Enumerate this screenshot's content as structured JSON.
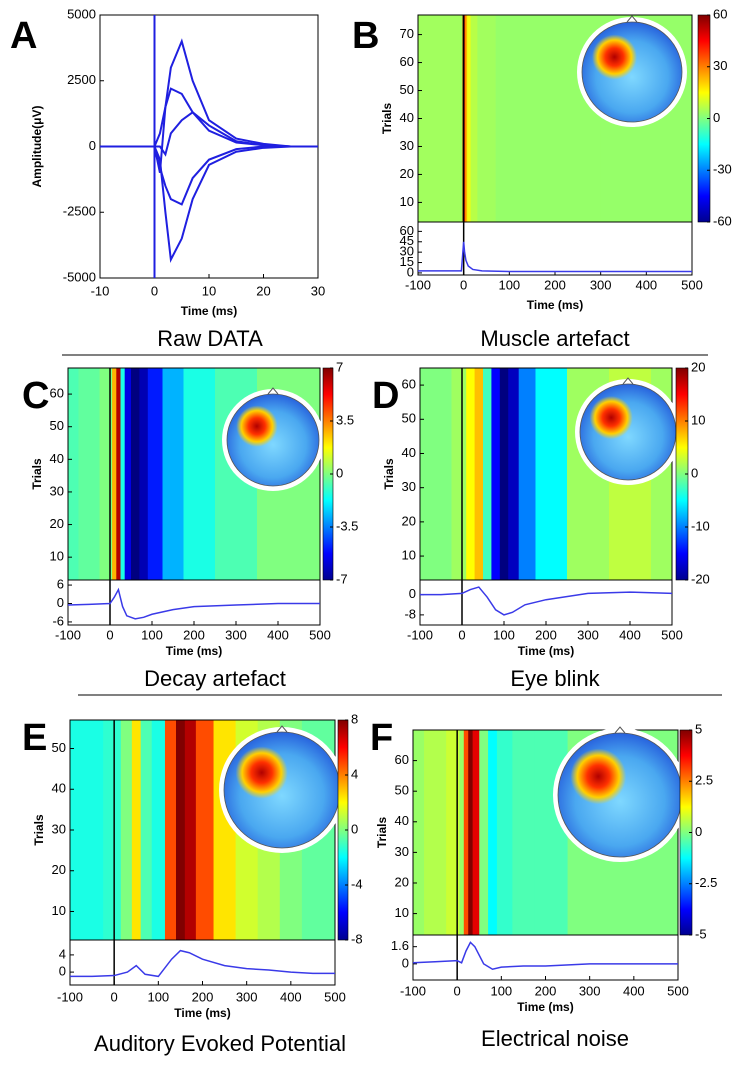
{
  "chart_data": [
    {
      "type": "line",
      "label": "A",
      "caption": "Raw DATA",
      "xlabel": "Time (ms)",
      "ylabel": "Amplitude(μV)",
      "xlim": [
        -10,
        30
      ],
      "xticks": [
        -10,
        0,
        10,
        20,
        30
      ],
      "ylim": [
        -5000,
        5000
      ],
      "yticks": [
        -5000,
        -2500,
        0,
        2500,
        5000
      ],
      "color": "#1f1fe0",
      "series": [
        {
          "x": [
            0,
            0
          ],
          "values": [
            -5000,
            5000
          ]
        },
        {
          "x": [
            -10,
            -1,
            0,
            1,
            2,
            3,
            5,
            7,
            10,
            15,
            20,
            25,
            30
          ],
          "values": [
            0,
            0,
            0,
            -1000,
            1500,
            3000,
            4000,
            2500,
            1000,
            300,
            100,
            0,
            0
          ]
        },
        {
          "x": [
            -10,
            -1,
            0,
            1,
            2,
            3,
            5,
            7,
            10,
            15,
            20,
            25,
            30
          ],
          "values": [
            0,
            0,
            0,
            -500,
            -2500,
            -4300,
            -3500,
            -2000,
            -700,
            -200,
            -50,
            0,
            0
          ]
        },
        {
          "x": [
            -10,
            -1,
            0,
            1,
            2,
            3,
            5,
            7,
            10,
            15,
            20,
            25,
            30
          ],
          "values": [
            0,
            0,
            0,
            500,
            1500,
            2200,
            2000,
            1300,
            600,
            150,
            50,
            0,
            0
          ]
        },
        {
          "x": [
            -10,
            -1,
            0,
            1,
            2,
            3,
            5,
            7,
            10,
            15,
            20,
            25,
            30
          ],
          "values": [
            0,
            0,
            0,
            -800,
            -1500,
            -2000,
            -2200,
            -1200,
            -500,
            -100,
            0,
            0,
            0
          ]
        },
        {
          "x": [
            -10,
            -1,
            0,
            1,
            2,
            3,
            5,
            7,
            10,
            15,
            20,
            25,
            30
          ],
          "values": [
            0,
            0,
            0,
            0,
            -300,
            500,
            1000,
            1300,
            800,
            200,
            50,
            0,
            0
          ]
        }
      ]
    },
    {
      "type": "heatmap",
      "label": "B",
      "caption": "Muscle artefact",
      "xlabel": "Time (ms)",
      "ylabel": "Trials",
      "xlim": [
        -100,
        500
      ],
      "xticks": [
        -100,
        0,
        100,
        200,
        300,
        400,
        500
      ],
      "ylim": [
        3,
        77
      ],
      "yticks": [
        10,
        20,
        30,
        40,
        50,
        60,
        70
      ],
      "clim": [
        -60,
        60
      ],
      "cticks": [
        60,
        30,
        0,
        -30,
        -60
      ],
      "erp": {
        "x": [
          -100,
          -10,
          -5,
          0,
          2,
          5,
          10,
          20,
          40,
          100,
          500
        ],
        "values": [
          3,
          3,
          3,
          45,
          30,
          18,
          10,
          5,
          3,
          2,
          2
        ],
        "ylim": [
          -3,
          62
        ],
        "yticks": [
          0,
          15,
          30,
          45,
          60
        ],
        "color": "#3a3ae8"
      }
    },
    {
      "type": "heatmap",
      "label": "C",
      "caption": "Decay artefact",
      "xlabel": "Time (ms)",
      "ylabel": "Trials",
      "xlim": [
        -100,
        500
      ],
      "xticks": [
        -100,
        0,
        100,
        200,
        300,
        400,
        500
      ],
      "ylim": [
        3,
        68
      ],
      "yticks": [
        10,
        20,
        30,
        40,
        50,
        60
      ],
      "clim": [
        -7,
        7
      ],
      "cticks": [
        7,
        3.5,
        0,
        -3.5,
        -7
      ],
      "erp": {
        "x": [
          -100,
          -50,
          0,
          10,
          20,
          30,
          40,
          60,
          80,
          100,
          150,
          200,
          300,
          400,
          500
        ],
        "values": [
          -0.5,
          -0.3,
          0,
          2,
          4.5,
          -1,
          -4,
          -5,
          -4.5,
          -3.5,
          -2,
          -1,
          -0.5,
          0,
          0
        ],
        "ylim": [
          -7,
          7
        ],
        "yticks": [
          6,
          0,
          -6
        ],
        "color": "#3a3ae8"
      }
    },
    {
      "type": "heatmap",
      "label": "D",
      "caption": "Eye blink",
      "xlabel": "Time (ms)",
      "ylabel": "Trials",
      "xlim": [
        -100,
        500
      ],
      "xticks": [
        -100,
        0,
        100,
        200,
        300,
        400,
        500
      ],
      "ylim": [
        3,
        65
      ],
      "yticks": [
        10,
        20,
        30,
        40,
        50,
        60
      ],
      "clim": [
        -20,
        20
      ],
      "cticks": [
        20,
        10,
        0,
        -10,
        -20
      ],
      "erp": {
        "x": [
          -100,
          -50,
          0,
          20,
          40,
          60,
          80,
          100,
          120,
          150,
          200,
          300,
          400,
          500
        ],
        "values": [
          0,
          0,
          0.5,
          2,
          3,
          -1,
          -6,
          -8,
          -7,
          -4,
          -2,
          0.5,
          1,
          0.5
        ],
        "ylim": [
          -12,
          5
        ],
        "yticks": [
          0,
          -8
        ],
        "color": "#3a3ae8"
      }
    },
    {
      "type": "heatmap",
      "label": "E",
      "caption": "Auditory Evoked Potential",
      "xlabel": "Time (ms)",
      "ylabel": "Trials",
      "xlim": [
        -100,
        500
      ],
      "xticks": [
        -100,
        0,
        100,
        200,
        300,
        400,
        500
      ],
      "ylim": [
        3,
        57
      ],
      "yticks": [
        10,
        20,
        30,
        40,
        50
      ],
      "clim": [
        -8,
        8
      ],
      "cticks": [
        8,
        4,
        0,
        -4,
        -8
      ],
      "erp": {
        "x": [
          -100,
          -50,
          0,
          30,
          50,
          70,
          100,
          130,
          150,
          170,
          200,
          250,
          300,
          350,
          400,
          450,
          500
        ],
        "values": [
          -1,
          -1,
          -0.8,
          0,
          1.5,
          -0.5,
          -1,
          3,
          5,
          4.5,
          3,
          1.5,
          0.8,
          0.5,
          0,
          -0.3,
          -0.3
        ],
        "ylim": [
          -3,
          7
        ],
        "yticks": [
          4,
          0
        ],
        "color": "#3a3ae8"
      }
    },
    {
      "type": "heatmap",
      "label": "F",
      "caption": "Electrical noise",
      "xlabel": "Time (ms)",
      "ylabel": "Trials",
      "xlim": [
        -100,
        500
      ],
      "xticks": [
        -100,
        0,
        100,
        200,
        300,
        400,
        500
      ],
      "ylim": [
        3,
        70
      ],
      "yticks": [
        10,
        20,
        30,
        40,
        50,
        60
      ],
      "clim": [
        -5,
        5
      ],
      "cticks": [
        5,
        2.5,
        0,
        -2.5,
        -5
      ],
      "erp": {
        "x": [
          -100,
          -50,
          0,
          10,
          20,
          30,
          40,
          60,
          80,
          100,
          150,
          200,
          300,
          400,
          500
        ],
        "values": [
          0.1,
          0.2,
          0.3,
          0.1,
          1.2,
          2,
          1.6,
          0,
          -0.5,
          -0.3,
          -0.2,
          -0.2,
          0,
          0,
          0
        ],
        "ylim": [
          -1.5,
          2.5
        ],
        "yticks": [
          1.6,
          0
        ],
        "color": "#3a3ae8"
      }
    }
  ]
}
